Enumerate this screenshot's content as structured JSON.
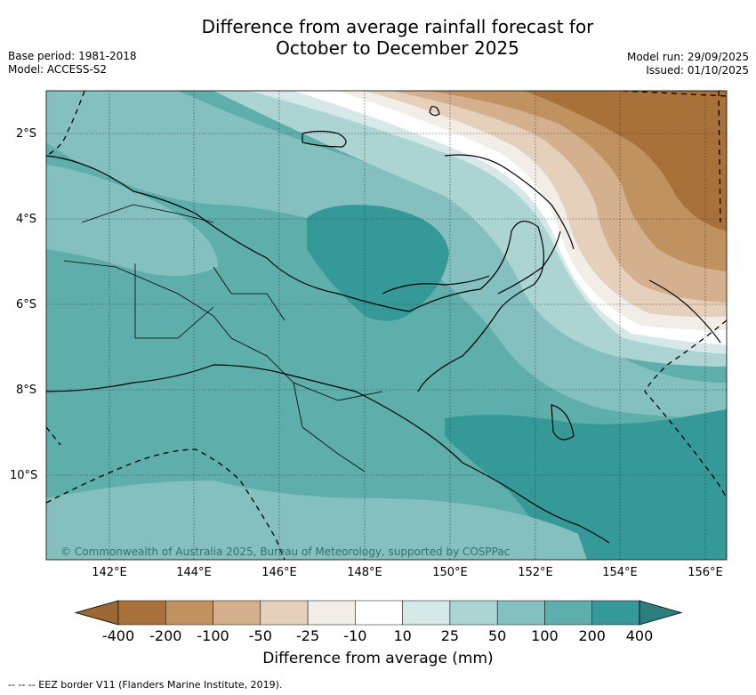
{
  "title": {
    "line1": "Difference from average rainfall forecast for",
    "line2": "October to December 2025"
  },
  "meta_left": {
    "base_period": "Base period: 1981-2018",
    "model": "Model: ACCESS-S2"
  },
  "meta_right": {
    "model_run": "Model run: 29/09/2025",
    "issued": "Issued: 01/10/2025"
  },
  "map": {
    "lon_labels": [
      "142°E",
      "144°E",
      "146°E",
      "148°E",
      "150°E",
      "152°E",
      "154°E",
      "156°E"
    ],
    "lat_labels": [
      "2°S",
      "4°S",
      "6°S",
      "8°S",
      "10°S"
    ],
    "copyright": "© Commonwealth of Australia 2025, Bureau of Meteorology, supported by COSPPac"
  },
  "colorbar": {
    "title": "Difference from average (mm)",
    "labels": [
      "-400",
      "-200",
      "-100",
      "-50",
      "-25",
      "-10",
      "10",
      "25",
      "50",
      "100",
      "200",
      "400"
    ],
    "colors": [
      "#a9713a",
      "#c0925f",
      "#d4b08e",
      "#e5d0bc",
      "#f3ede8",
      "#ffffff",
      "#d6e9e8",
      "#abd4d3",
      "#84c0bf",
      "#5eaeac",
      "#359998"
    ],
    "under_color": "#9a6735",
    "over_color": "#2c7e7c"
  },
  "footer": {
    "eez": "--  --  -- EEZ border V11 (Flanders Marine Institute, 2019)."
  }
}
